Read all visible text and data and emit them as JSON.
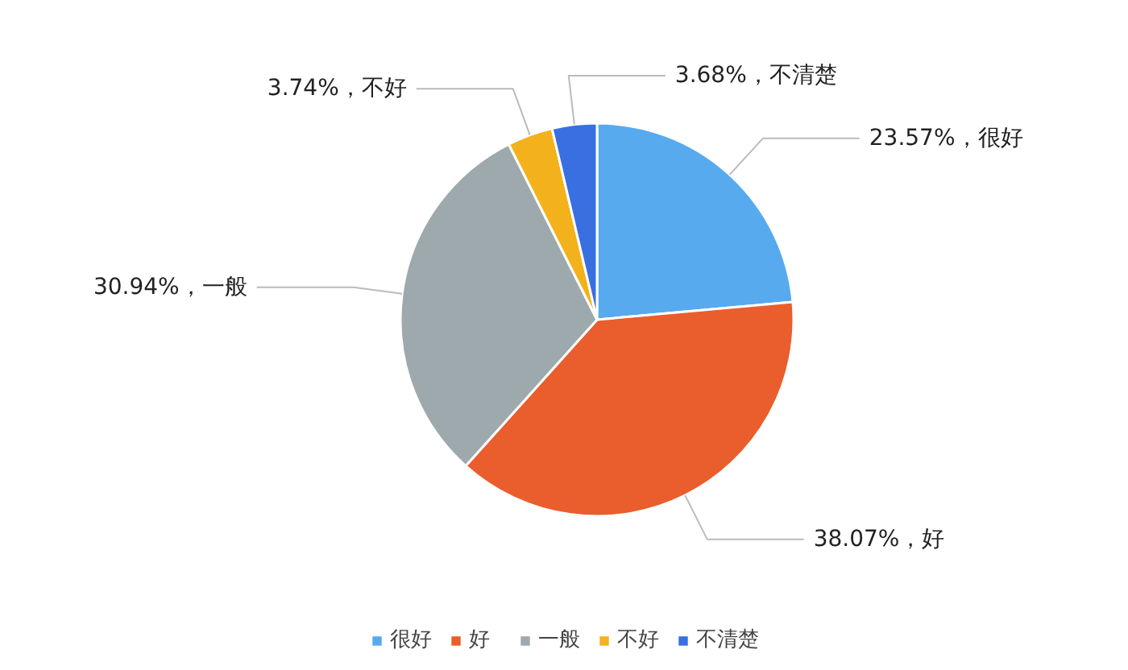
{
  "chart_data": {
    "type": "pie",
    "categories": [
      "很好",
      "好",
      "一般",
      "不好",
      "不清楚"
    ],
    "values": [
      23.57,
      38.07,
      30.94,
      3.74,
      3.68
    ],
    "colors": [
      "#58aaef",
      "#e95e2c",
      "#9ea9ad",
      "#f3b21b",
      "#3a6fe2"
    ],
    "value_labels": [
      "23.57%，很好",
      "38.07%，好",
      "30.94%，一般",
      "3.74%，不好",
      "3.68%，不清楚"
    ],
    "legend": "bottom"
  }
}
